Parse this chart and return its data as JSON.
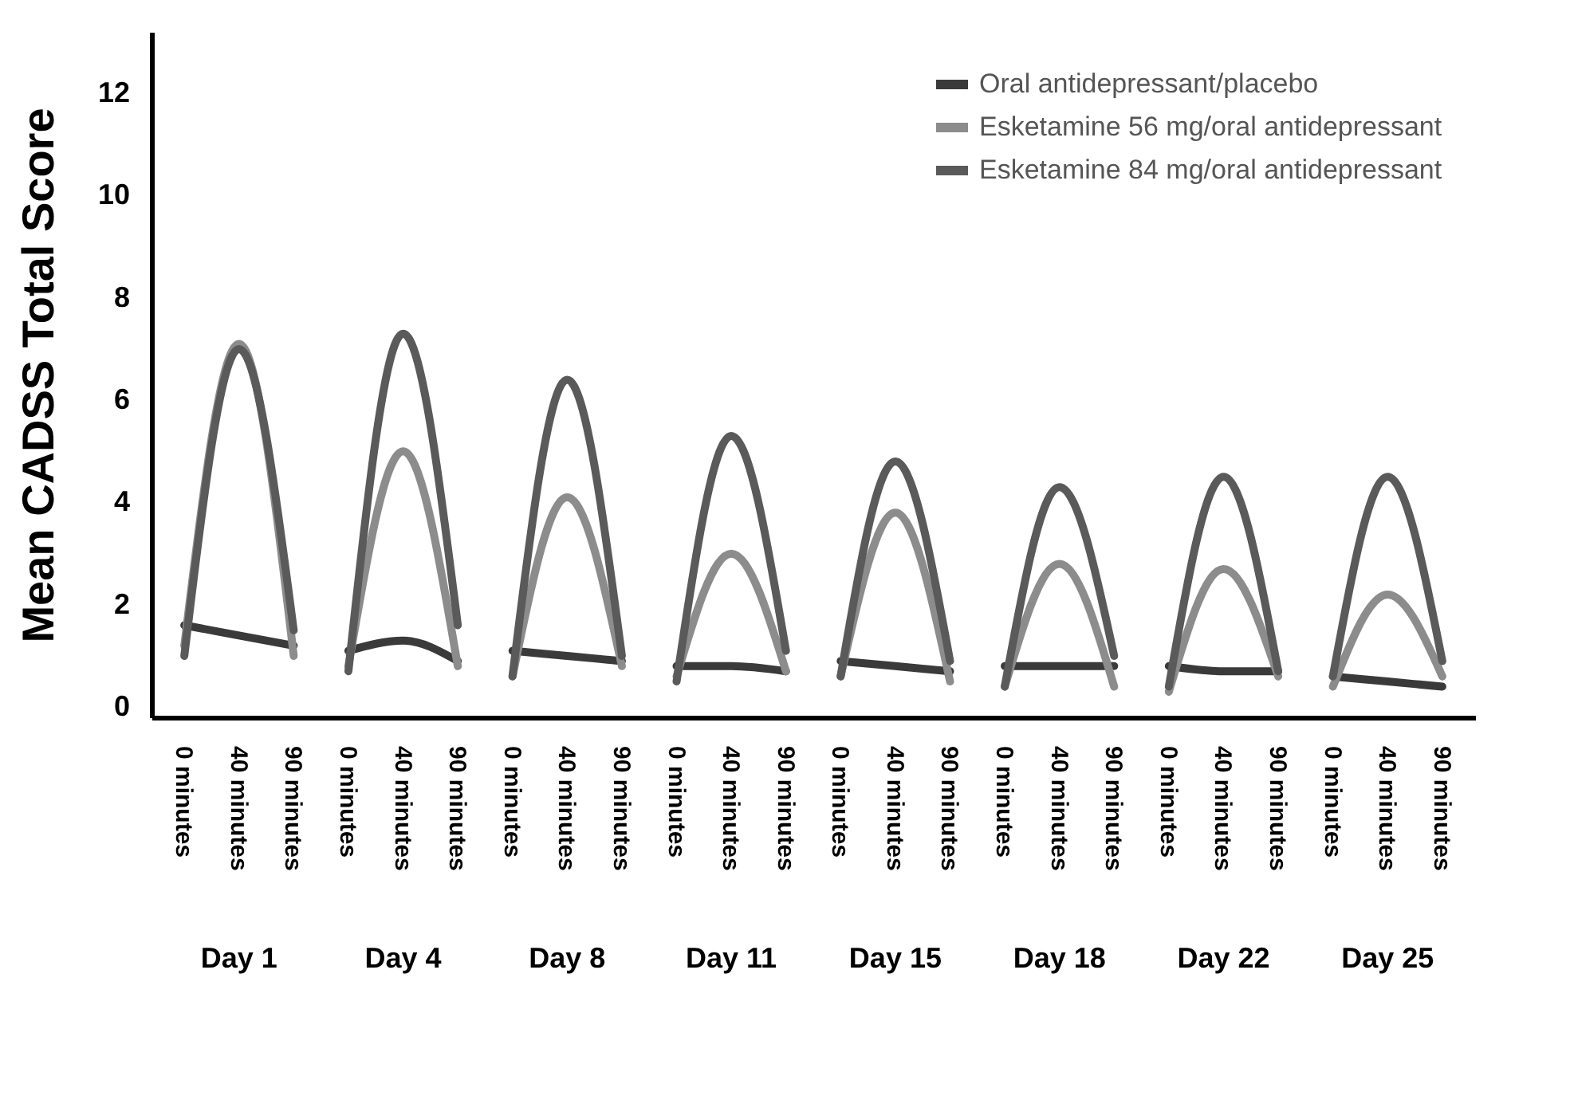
{
  "chart_data": {
    "type": "line",
    "ylabel": "Mean CADSS Total Score",
    "categories": [
      "0 minutes",
      "40 minutes",
      "90 minutes",
      "0 minutes",
      "40 minutes",
      "90 minutes",
      "0 minutes",
      "40 minutes",
      "90 minutes",
      "0 minutes",
      "40 minutes",
      "90 minutes",
      "0 minutes",
      "40 minutes",
      "90 minutes",
      "0 minutes",
      "40 minutes",
      "90 minutes",
      "0 minutes",
      "40 minutes",
      "90 minutes",
      "0 minutes",
      "40 minutes",
      "90 minutes"
    ],
    "annotations": [
      "Day 1",
      "Day 4",
      "Day 8",
      "Day 11",
      "Day 15",
      "Day 18",
      "Day 22",
      "Day 25"
    ],
    "series": [
      {
        "name": "Oral antidepressant/placebo",
        "color": "#3a3a3a",
        "values": [
          1.6,
          1.4,
          1.2,
          1.1,
          1.3,
          0.9,
          1.1,
          1.0,
          0.9,
          0.8,
          0.8,
          0.7,
          0.9,
          0.8,
          0.7,
          0.8,
          0.8,
          0.8,
          0.8,
          0.7,
          0.7,
          0.6,
          0.5,
          0.4
        ]
      },
      {
        "name": "Esketamine 56 mg/oral antidepressant",
        "color": "#8c8c8c",
        "values": [
          1.2,
          7.1,
          1.0,
          0.8,
          5.0,
          0.8,
          0.6,
          4.1,
          0.8,
          0.6,
          3.0,
          0.7,
          0.6,
          3.8,
          0.5,
          0.4,
          2.8,
          0.4,
          0.3,
          2.7,
          0.6,
          0.4,
          2.2,
          0.6
        ]
      },
      {
        "name": "Esketamine 84 mg/oral antidepressant",
        "color": "#5a5a5a",
        "values": [
          1.0,
          7.0,
          1.5,
          0.7,
          7.3,
          1.6,
          0.6,
          6.4,
          1.0,
          0.5,
          5.3,
          1.1,
          0.6,
          4.8,
          0.9,
          0.4,
          4.3,
          1.0,
          0.4,
          4.5,
          0.7,
          0.6,
          4.5,
          0.9
        ]
      }
    ],
    "ylim": [
      -0.2,
      13.2
    ],
    "yticks": [
      0,
      2,
      4,
      6,
      8,
      10,
      12
    ],
    "legend": "top right",
    "grid": false,
    "marker": "none",
    "line_style": "solid"
  }
}
